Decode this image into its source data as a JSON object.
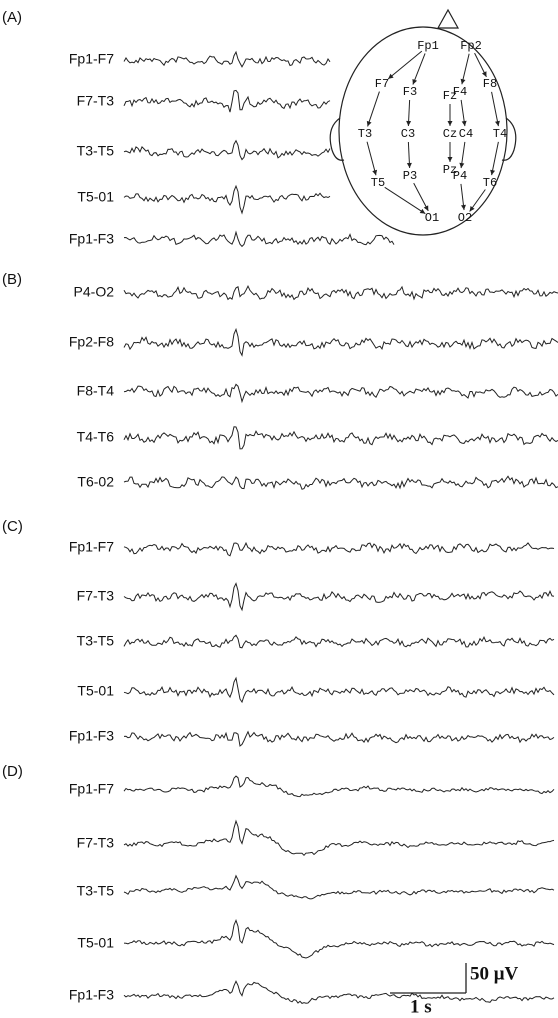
{
  "panels": [
    {
      "label": "(A)",
      "channels": [
        "Fp1-F7",
        "F7-T3",
        "T3-T5",
        "T5-01",
        "Fp1-F3"
      ]
    },
    {
      "label": "(B)",
      "channels": [
        "P4-O2",
        "Fp2-F8",
        "F8-T4",
        "T4-T6",
        "T6-02"
      ]
    },
    {
      "label": "(C)",
      "channels": [
        "Fp1-F7",
        "F7-T3",
        "T3-T5",
        "T5-01",
        "Fp1-F3"
      ]
    },
    {
      "label": "(D)",
      "channels": [
        "Fp1-F7",
        "F7-T3",
        "T3-T5",
        "T5-01",
        "Fp1-F3"
      ]
    }
  ],
  "head": {
    "electrodes": [
      "Fp1",
      "Fp2",
      "F7",
      "F3",
      "Fz",
      "F4",
      "F8",
      "T3",
      "C3",
      "Cz",
      "C4",
      "T4",
      "T5",
      "P3",
      "Pz",
      "P4",
      "T6",
      "O1",
      "O2"
    ]
  },
  "scale_bar": {
    "amplitude": "50 μV",
    "time": "1 s"
  }
}
